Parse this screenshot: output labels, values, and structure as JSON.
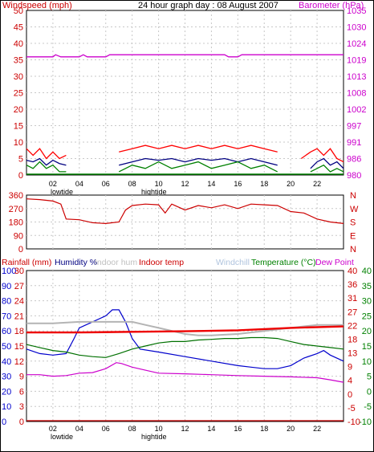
{
  "chart_data": [
    {
      "type": "line",
      "title": "24 hour graph day : 08 August 2007",
      "left_axis_label": "Windspeed (mph)",
      "right_axis_label": "Barometer (hPa)",
      "left_ticks": [
        "0",
        "5",
        "10",
        "15",
        "20",
        "25",
        "30",
        "35",
        "40",
        "45",
        "50"
      ],
      "right_ticks": [
        "980",
        "986",
        "991",
        "997",
        "1002",
        "1008",
        "1013",
        "1019",
        "1024",
        "1030",
        "1035"
      ],
      "left_ylim": [
        0,
        50
      ],
      "right_ylim": [
        980,
        1035
      ],
      "x_ticks": [
        "02",
        "04",
        "06",
        "08",
        "10",
        "12",
        "14",
        "16",
        "18",
        "20",
        "22"
      ],
      "tide_labels": {
        "low": "lowtide",
        "high": "hightide"
      },
      "x_range_hours": [
        0,
        24
      ],
      "grid": true,
      "colors": {
        "gust": "#ff0000",
        "average": "#000080",
        "wind_green": "#008000",
        "barometer": "#cc00cc"
      },
      "series": [
        {
          "color": "#ff0000",
          "segments": [
            {
              "x": [
                0,
                0.5,
                1,
                1.5,
                2,
                2.5,
                3
              ],
              "y": [
                8,
                6,
                8,
                5,
                7,
                5,
                6
              ]
            },
            {
              "x": [
                7,
                8,
                9,
                10,
                11,
                12,
                13,
                14,
                15,
                16,
                17,
                18,
                19
              ],
              "y": [
                7,
                8,
                9,
                8,
                9,
                8,
                9,
                8,
                9,
                8,
                9,
                8,
                7
              ]
            },
            {
              "x": [
                20.8,
                21.5,
                22,
                22.5,
                23,
                23.5,
                24
              ],
              "y": [
                5,
                7,
                8,
                6,
                8,
                5,
                4
              ]
            }
          ]
        },
        {
          "color": "#000080",
          "segments": [
            {
              "x": [
                0,
                0.5,
                1,
                1.5,
                2,
                2.5,
                3
              ],
              "y": [
                4.5,
                4,
                5,
                3,
                4.5,
                3.5,
                3
              ]
            },
            {
              "x": [
                7,
                8,
                9,
                10,
                11,
                12,
                13,
                14,
                15,
                16,
                17,
                18,
                19
              ],
              "y": [
                3,
                4,
                5,
                4.5,
                5,
                4,
                5,
                4.5,
                5,
                4,
                5,
                4,
                3
              ]
            },
            {
              "x": [
                21.5,
                22,
                22.5,
                23,
                23.5,
                24
              ],
              "y": [
                2,
                4,
                5,
                3,
                4,
                2
              ]
            }
          ]
        },
        {
          "color": "#008000",
          "segments": [
            {
              "x": [
                0,
                0.5,
                1,
                1.5,
                2,
                2.5,
                3
              ],
              "y": [
                3,
                2,
                4,
                2,
                3,
                1,
                1
              ]
            },
            {
              "x": [
                7,
                8,
                9,
                10,
                11,
                12,
                13,
                14,
                15,
                16,
                17,
                18,
                19
              ],
              "y": [
                1,
                3,
                2,
                4,
                2,
                3,
                4,
                2,
                3,
                4,
                2,
                3,
                1
              ]
            },
            {
              "x": [
                21.5,
                22,
                22.5,
                23,
                23.5,
                24
              ],
              "y": [
                1,
                2,
                3,
                1,
                2,
                1
              ]
            }
          ]
        },
        {
          "axis": "right",
          "color": "#cc00cc",
          "x": [
            0,
            2,
            2.2,
            2.6,
            4,
            4.3,
            4.6,
            6,
            6.3,
            8,
            15,
            15.3,
            16,
            16.3,
            18.5,
            19,
            24
          ],
          "y": [
            1019.5,
            1019.5,
            1020.2,
            1019.5,
            1019.5,
            1020.2,
            1019.5,
            1019.5,
            1020.2,
            1020.2,
            1020.2,
            1019.5,
            1019.5,
            1020.2,
            1020.2,
            1020.2,
            1020.2
          ]
        }
      ]
    },
    {
      "type": "line",
      "left_ticks": [
        "0",
        "90",
        "180",
        "270",
        "360"
      ],
      "right_ticks": [
        "N",
        "W",
        "S",
        "E",
        "N"
      ],
      "ylim": [
        0,
        360
      ],
      "x_range_hours": [
        0,
        24
      ],
      "grid": true,
      "series": [
        {
          "color": "#cc0000",
          "x": [
            0,
            1,
            2,
            2.6,
            3,
            4,
            5,
            6,
            7,
            7.5,
            8,
            9,
            10,
            10.5,
            11,
            12,
            13,
            14,
            15,
            16,
            17,
            18,
            19,
            20,
            21,
            22,
            23,
            24
          ],
          "y": [
            335,
            330,
            320,
            300,
            200,
            195,
            175,
            170,
            180,
            260,
            290,
            300,
            295,
            240,
            300,
            260,
            290,
            275,
            295,
            270,
            300,
            295,
            290,
            250,
            240,
            200,
            180,
            170
          ]
        }
      ]
    },
    {
      "type": "line",
      "legend": [
        "Rainfall (mm)",
        "Humidity %",
        "Indoor hum",
        "Indoor temp",
        "Windchill",
        "Temperature (°C)",
        "Dew Point"
      ],
      "legend_colors": [
        "#cc0000",
        "#000080",
        "#c0c0c0",
        "#cc0000",
        "#b0c4de",
        "#008000",
        "#cc00cc"
      ],
      "humidity_ticks": [
        "0",
        "10",
        "20",
        "30",
        "40",
        "50",
        "60",
        "70",
        "80",
        "90",
        "100"
      ],
      "rain_ticks": [
        "0",
        "3",
        "6",
        "9",
        "12",
        "15",
        "18",
        "21",
        "24",
        "27",
        "30"
      ],
      "temp_ticks_right": [
        "-10",
        "-5",
        "0",
        "4",
        "9",
        "13",
        "18",
        "22",
        "27",
        "31",
        "36",
        "40"
      ],
      "temp_ticks_far_right": [
        "-10",
        "-5",
        "0",
        "5",
        "10",
        "15",
        "20",
        "25",
        "30",
        "35",
        "40"
      ],
      "x_ticks": [
        "02",
        "04",
        "06",
        "08",
        "10",
        "12",
        "14",
        "16",
        "18",
        "20",
        "22"
      ],
      "tide_labels": {
        "low": "lowtide",
        "high": "hightide"
      },
      "x_range_hours": [
        0,
        24
      ],
      "grid": true,
      "series": [
        {
          "name": "Humidity %",
          "axis": "humidity",
          "color": "#0000cc",
          "x": [
            0,
            1,
            2,
            3,
            3.6,
            4,
            5,
            6,
            6.5,
            7,
            7.5,
            8,
            8.6,
            10,
            12,
            14,
            16,
            17,
            18,
            19,
            20,
            21,
            22,
            22.5,
            23,
            24
          ],
          "y": [
            48,
            45,
            44,
            45,
            55,
            62,
            66,
            70,
            74,
            74,
            66,
            55,
            48,
            46,
            43,
            40,
            37,
            36,
            35,
            35,
            37,
            42,
            45,
            47,
            44,
            40
          ]
        },
        {
          "name": "Indoor hum",
          "axis": "humidity",
          "color": "#b4b4b4",
          "x": [
            0,
            2,
            4,
            6,
            8,
            9,
            10,
            12,
            13,
            14,
            16,
            18,
            20,
            22,
            24
          ],
          "y": [
            65,
            65,
            66,
            66,
            66,
            64,
            62,
            58,
            57,
            57,
            58,
            60,
            62,
            64,
            64
          ]
        },
        {
          "name": "Indoor temp",
          "axis": "temp",
          "color": "#ee0000",
          "x": [
            0,
            4,
            8,
            12,
            16,
            20,
            24
          ],
          "y": [
            19.5,
            19.5,
            19.7,
            19.9,
            20.2,
            21.0,
            21.5
          ]
        },
        {
          "name": "Temperature (°C)",
          "axis": "temp",
          "color": "#007000",
          "x": [
            0,
            1,
            2,
            3,
            4,
            5,
            6,
            7,
            8,
            9,
            10,
            11,
            12,
            13,
            14,
            15,
            16,
            17,
            18,
            19,
            20,
            21,
            22,
            23,
            24
          ],
          "y": [
            15.5,
            14.5,
            13.5,
            13.0,
            12.0,
            11.5,
            11.2,
            12.5,
            14.0,
            15.0,
            16.0,
            16.5,
            16.5,
            17.0,
            17.2,
            17.5,
            17.5,
            17.8,
            17.8,
            17.5,
            16.5,
            15.5,
            15.0,
            14.5,
            14.0
          ]
        },
        {
          "name": "Dew Point",
          "axis": "temp",
          "color": "#cc00cc",
          "x": [
            0,
            1,
            2,
            3,
            4,
            5,
            6,
            6.8,
            7.2,
            8,
            9,
            10,
            12,
            14,
            16,
            18,
            20,
            22,
            23,
            24
          ],
          "y": [
            5.5,
            5.5,
            5.0,
            5.2,
            6.0,
            6.2,
            7.5,
            9.5,
            9.2,
            8.0,
            7.0,
            6.0,
            5.8,
            5.5,
            5.2,
            5.0,
            4.8,
            4.5,
            3.8,
            3.0
          ]
        },
        {
          "name": "Rainfall (mm)",
          "axis": "rain",
          "color": "#cc0000",
          "x": [
            0,
            24
          ],
          "y": [
            0,
            0
          ]
        }
      ]
    }
  ]
}
